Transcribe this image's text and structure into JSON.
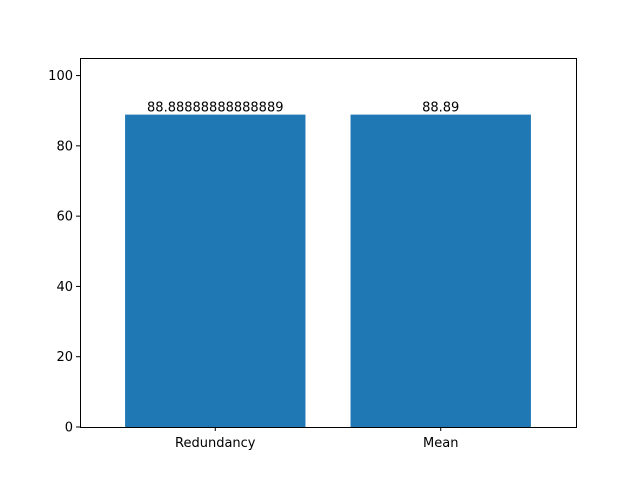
{
  "chart_data": {
    "type": "bar",
    "title": "",
    "xlabel": "",
    "ylabel": "",
    "categories": [
      "Redundancy",
      "Mean"
    ],
    "values": [
      88.88888888888889,
      88.89
    ],
    "data_labels": [
      "88.88888888888889",
      "88.89"
    ],
    "ylim": [
      0,
      105
    ],
    "yticks": [
      0,
      20,
      40,
      60,
      80,
      100
    ],
    "grid": false,
    "legend": "none",
    "bar_color": "#1f77b4"
  }
}
